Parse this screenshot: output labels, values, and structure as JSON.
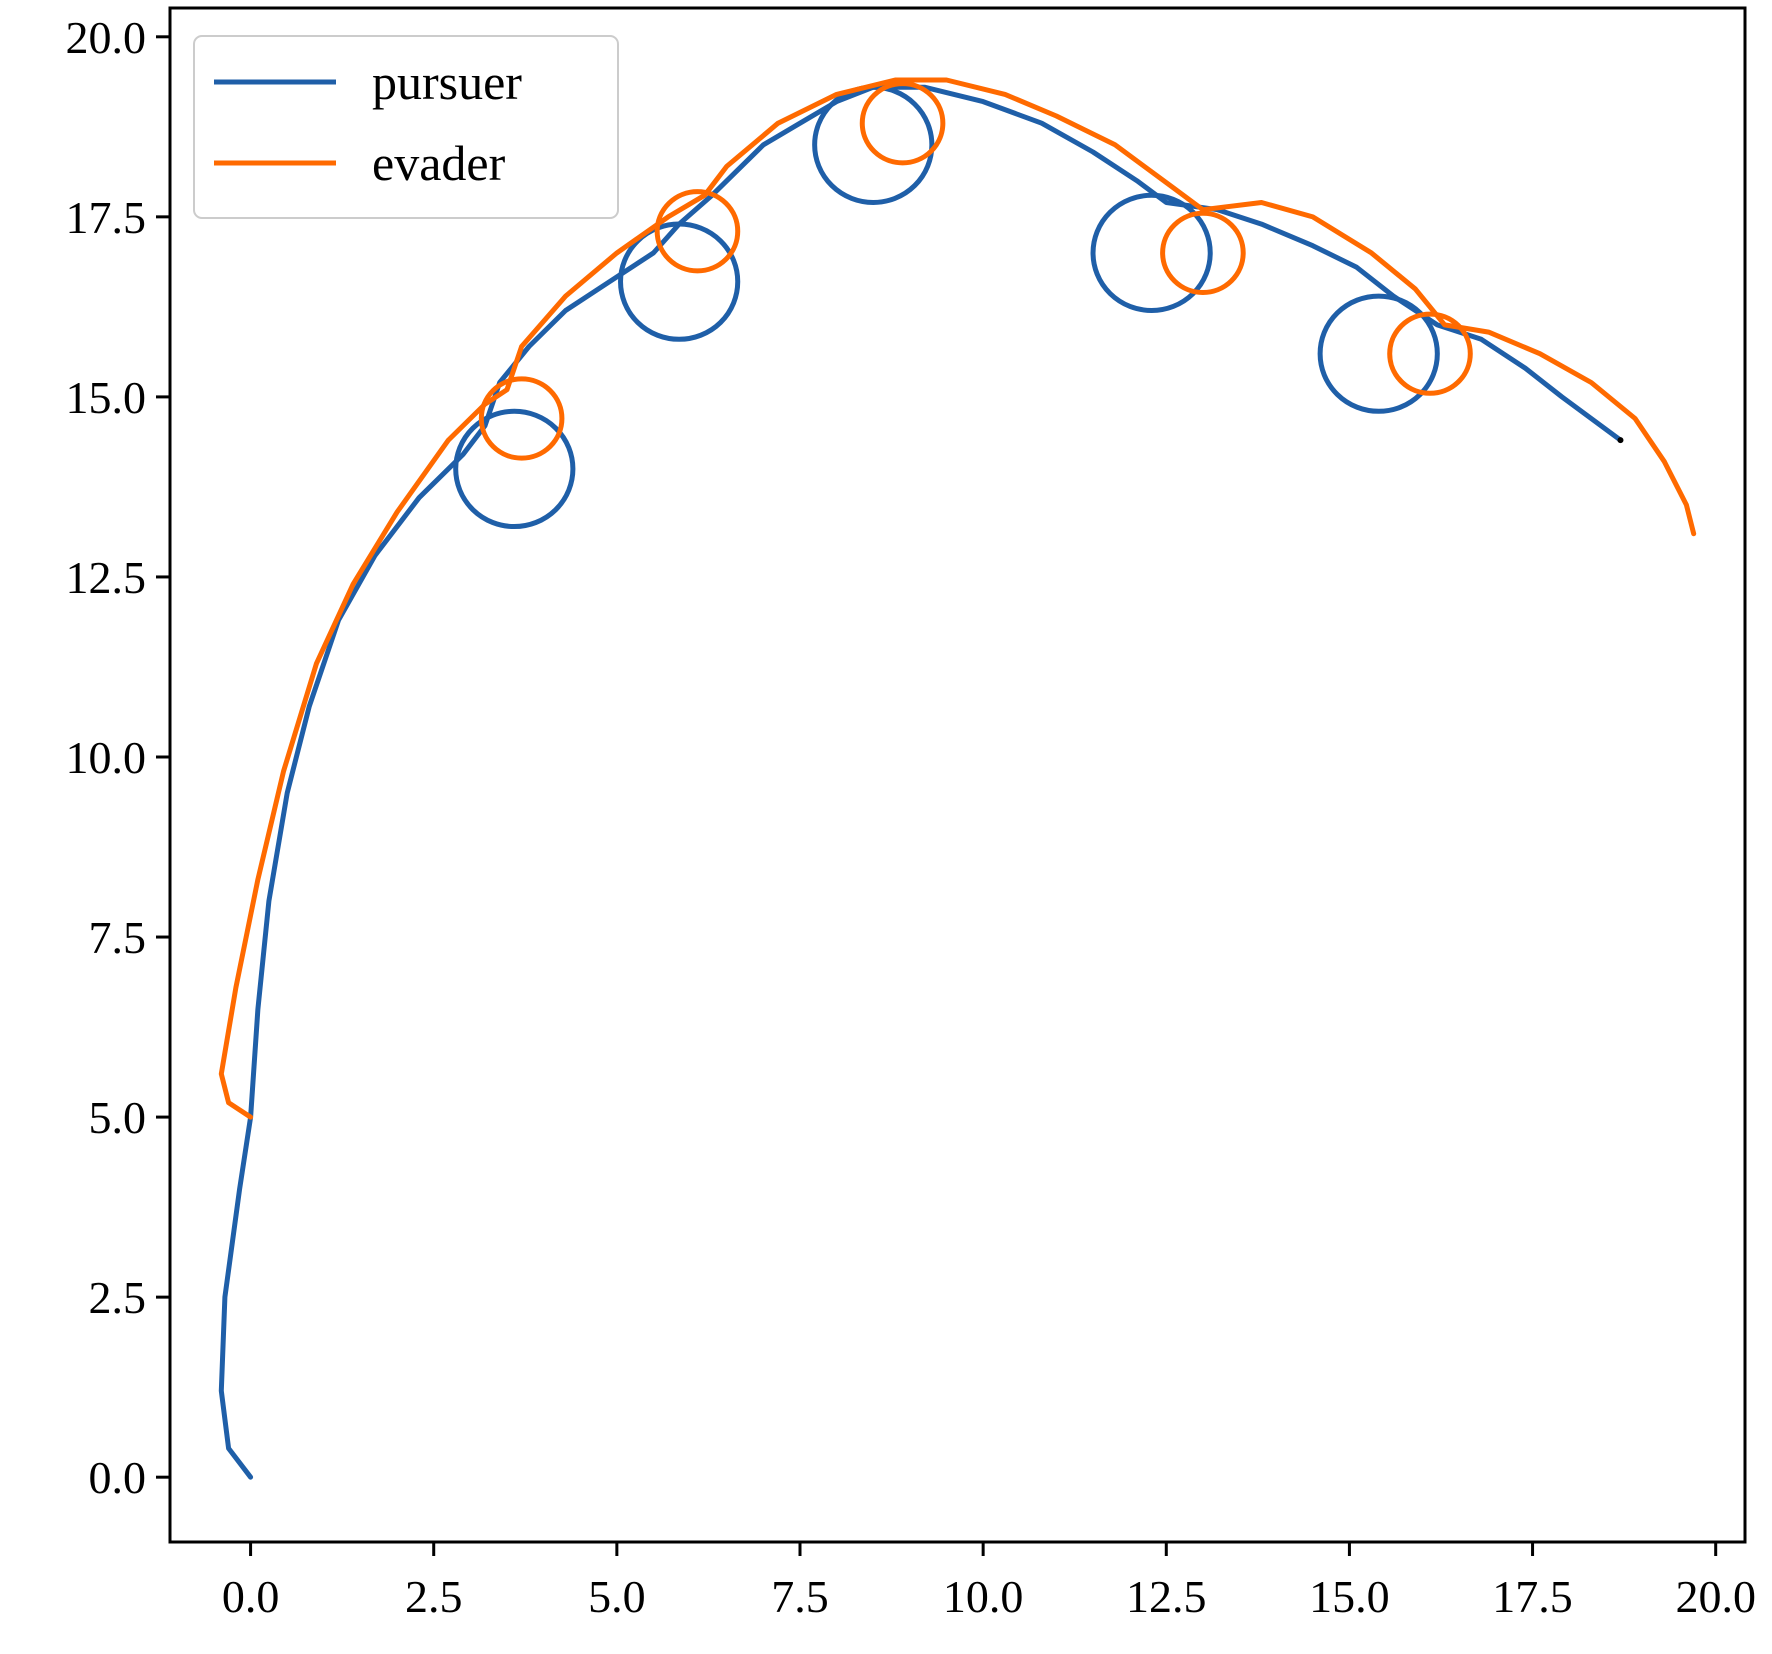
{
  "chart_data": {
    "type": "line",
    "title": "",
    "xlabel": "",
    "ylabel": "",
    "xlim": [
      -1.1,
      20.4
    ],
    "ylim": [
      -0.9,
      20.4
    ],
    "x_ticks": [
      0.0,
      2.5,
      5.0,
      7.5,
      10.0,
      12.5,
      15.0,
      17.5,
      20.0
    ],
    "y_ticks": [
      0.0,
      2.5,
      5.0,
      7.5,
      10.0,
      12.5,
      15.0,
      17.5,
      20.0
    ],
    "x_tick_labels": [
      "0.0",
      "2.5",
      "5.0",
      "7.5",
      "10.0",
      "12.5",
      "15.0",
      "17.5",
      "20.0"
    ],
    "y_tick_labels": [
      "0.0",
      "2.5",
      "5.0",
      "7.5",
      "10.0",
      "12.5",
      "15.0",
      "17.5",
      "20.0"
    ],
    "grid": false,
    "legend_position": "top-left",
    "series": [
      {
        "name": "pursuer",
        "color": "#1f5fa8",
        "points": [
          [
            0.0,
            0.0
          ],
          [
            -0.3,
            0.4
          ],
          [
            -0.4,
            1.2
          ],
          [
            -0.35,
            2.5
          ],
          [
            -0.15,
            4.0
          ],
          [
            0.0,
            5.0
          ],
          [
            0.1,
            6.5
          ],
          [
            0.25,
            8.0
          ],
          [
            0.5,
            9.5
          ],
          [
            0.8,
            10.7
          ],
          [
            1.2,
            11.9
          ],
          [
            1.7,
            12.8
          ],
          [
            2.3,
            13.6
          ],
          [
            2.9,
            14.2
          ],
          [
            3.2,
            14.6
          ],
          [
            3.4,
            15.2
          ],
          [
            3.8,
            15.7
          ],
          [
            4.3,
            16.2
          ],
          [
            4.9,
            16.6
          ],
          [
            5.5,
            17.0
          ],
          [
            5.85,
            17.4
          ],
          [
            6.3,
            17.8
          ],
          [
            7.0,
            18.5
          ],
          [
            7.5,
            18.8
          ],
          [
            8.0,
            19.1
          ],
          [
            8.5,
            19.3
          ],
          [
            9.2,
            19.3
          ],
          [
            10.0,
            19.1
          ],
          [
            10.8,
            18.8
          ],
          [
            11.5,
            18.4
          ],
          [
            12.1,
            18.0
          ],
          [
            12.5,
            17.7
          ],
          [
            13.2,
            17.6
          ],
          [
            13.8,
            17.4
          ],
          [
            14.5,
            17.1
          ],
          [
            15.1,
            16.8
          ],
          [
            15.6,
            16.4
          ],
          [
            16.2,
            16.0
          ],
          [
            16.8,
            15.8
          ],
          [
            17.4,
            15.4
          ],
          [
            17.9,
            15.0
          ],
          [
            18.3,
            14.7
          ],
          [
            18.7,
            14.4
          ]
        ],
        "loops": [
          {
            "cx": 3.6,
            "cy": 14.0,
            "r": 0.8
          },
          {
            "cx": 5.85,
            "cy": 16.6,
            "r": 0.8
          },
          {
            "cx": 8.5,
            "cy": 18.5,
            "r": 0.8
          },
          {
            "cx": 12.3,
            "cy": 17.0,
            "r": 0.8
          },
          {
            "cx": 15.4,
            "cy": 15.6,
            "r": 0.8
          }
        ]
      },
      {
        "name": "evader",
        "color": "#ff6a00",
        "points": [
          [
            0.0,
            5.0
          ],
          [
            -0.3,
            5.2
          ],
          [
            -0.4,
            5.6
          ],
          [
            -0.2,
            6.8
          ],
          [
            0.1,
            8.3
          ],
          [
            0.45,
            9.8
          ],
          [
            0.9,
            11.3
          ],
          [
            1.4,
            12.4
          ],
          [
            2.0,
            13.4
          ],
          [
            2.7,
            14.4
          ],
          [
            3.2,
            14.9
          ],
          [
            3.5,
            15.1
          ],
          [
            3.7,
            15.7
          ],
          [
            4.3,
            16.4
          ],
          [
            5.0,
            17.0
          ],
          [
            5.7,
            17.5
          ],
          [
            6.2,
            17.8
          ],
          [
            6.5,
            18.2
          ],
          [
            7.2,
            18.8
          ],
          [
            8.0,
            19.2
          ],
          [
            8.8,
            19.4
          ],
          [
            9.5,
            19.4
          ],
          [
            10.3,
            19.2
          ],
          [
            11.0,
            18.9
          ],
          [
            11.8,
            18.5
          ],
          [
            12.6,
            17.9
          ],
          [
            13.0,
            17.6
          ],
          [
            13.8,
            17.7
          ],
          [
            14.5,
            17.5
          ],
          [
            15.3,
            17.0
          ],
          [
            15.9,
            16.5
          ],
          [
            16.3,
            16.0
          ],
          [
            16.9,
            15.9
          ],
          [
            17.6,
            15.6
          ],
          [
            18.3,
            15.2
          ],
          [
            18.9,
            14.7
          ],
          [
            19.3,
            14.1
          ],
          [
            19.6,
            13.5
          ],
          [
            19.7,
            13.1
          ]
        ],
        "loops": [
          {
            "cx": 3.7,
            "cy": 14.7,
            "r": 0.55
          },
          {
            "cx": 6.1,
            "cy": 17.3,
            "r": 0.55
          },
          {
            "cx": 8.9,
            "cy": 18.8,
            "r": 0.55
          },
          {
            "cx": 13.0,
            "cy": 17.0,
            "r": 0.55
          },
          {
            "cx": 16.1,
            "cy": 15.6,
            "r": 0.55
          }
        ]
      }
    ]
  }
}
